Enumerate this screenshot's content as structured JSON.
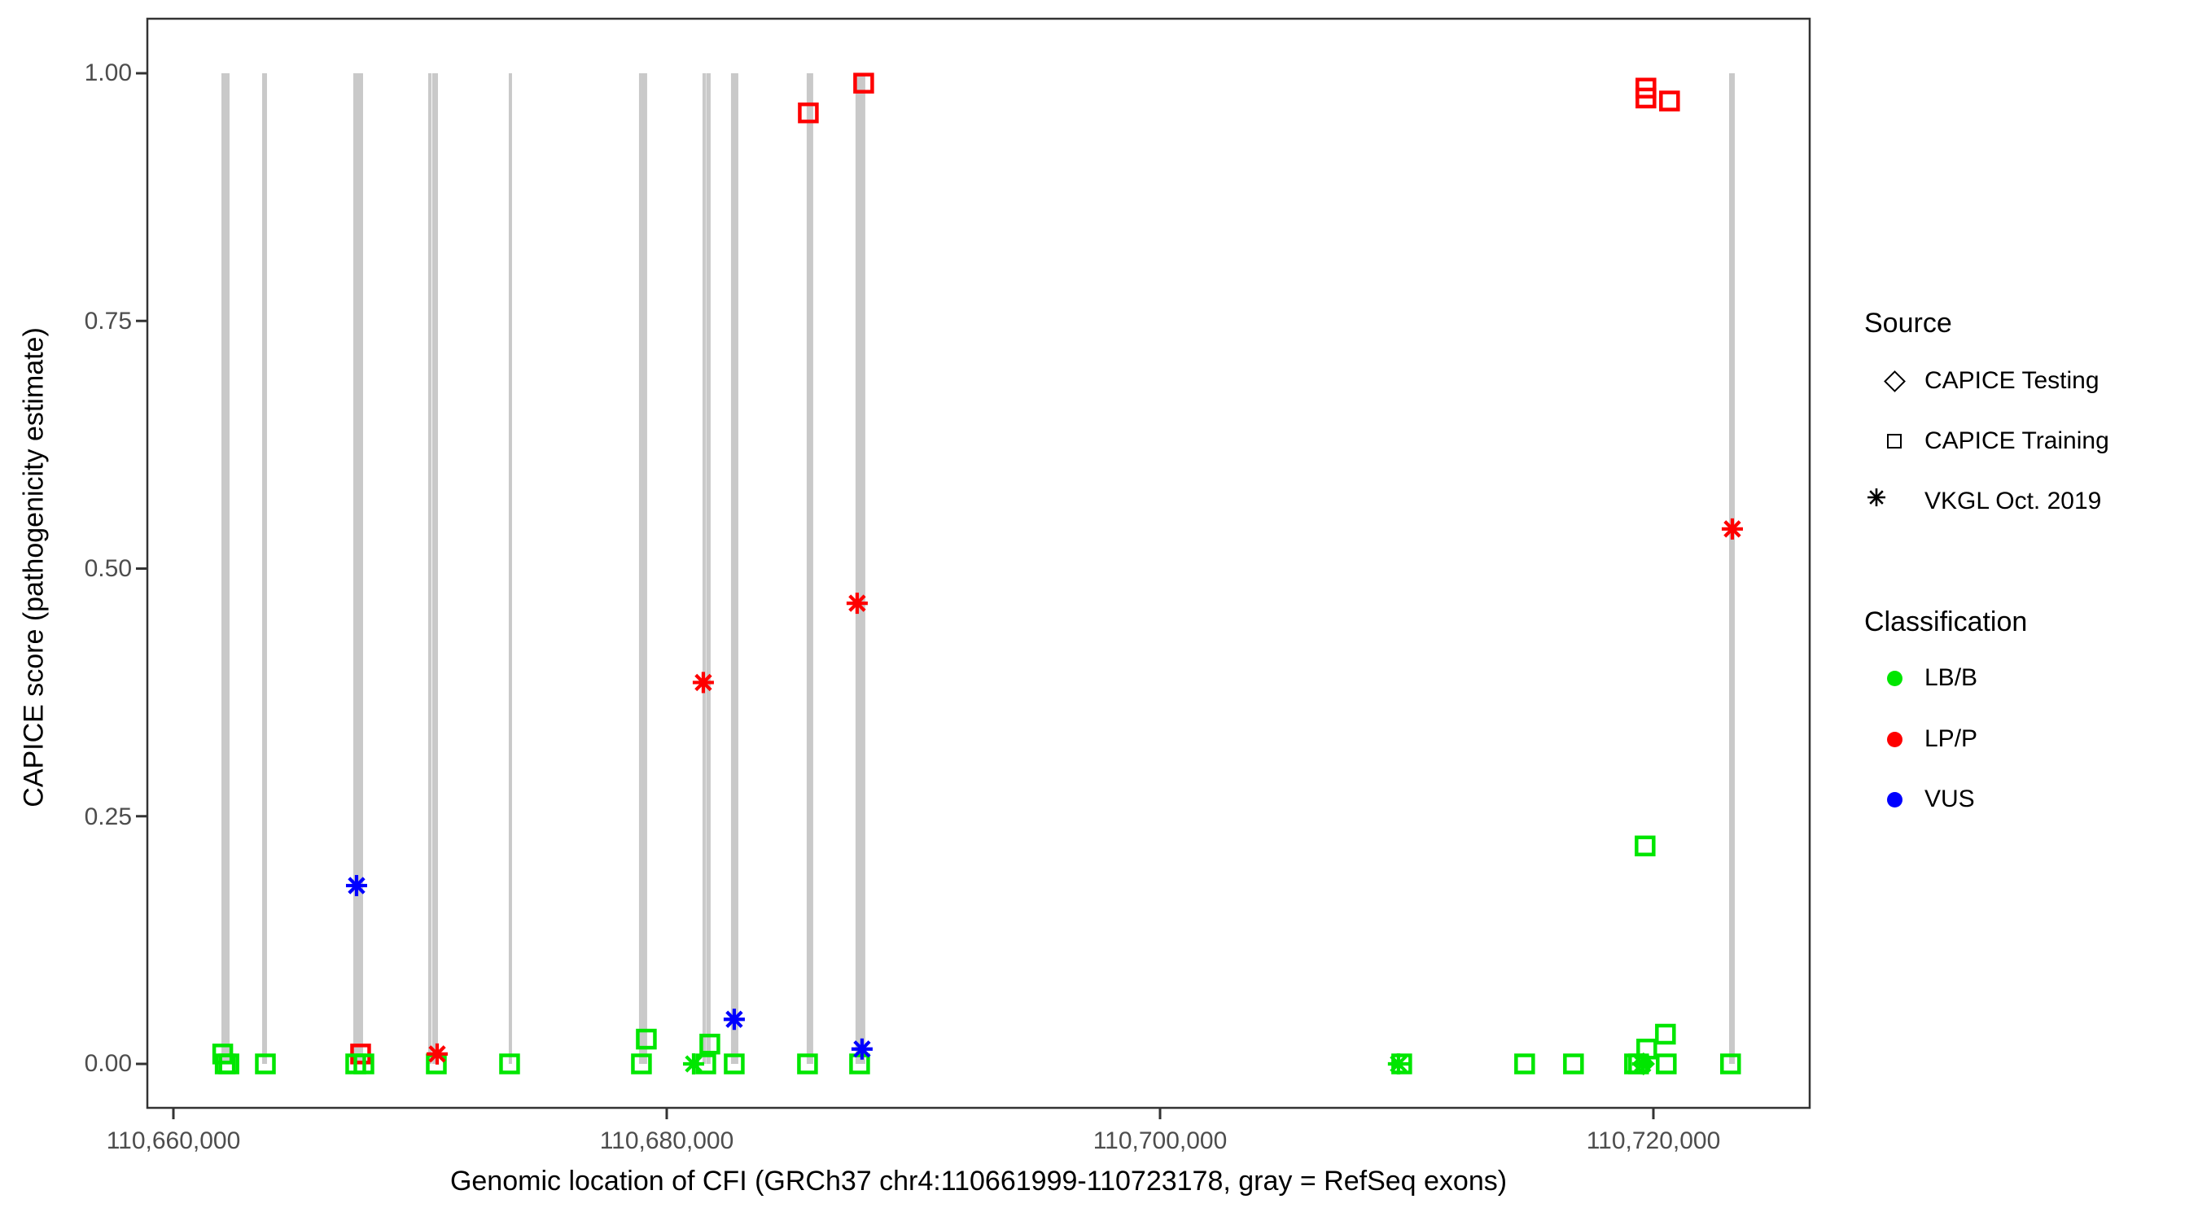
{
  "chart_data": {
    "type": "scatter",
    "title": "",
    "xlabel": "Genomic location of CFI (GRCh37 chr4:110661999-110723178, gray = RefSeq exons)",
    "ylabel": "CAPICE score (pathogenicity estimate)",
    "x_axis": {
      "ticks": [
        {
          "label": "110,660,000",
          "bp": 110660000
        },
        {
          "label": "110,680,000",
          "bp": 110680000
        },
        {
          "label": "110,700,000",
          "bp": 110700000
        },
        {
          "label": "110,720,000",
          "bp": 110720000
        }
      ],
      "gene_start": 110661999,
      "gene_end": 110723178
    },
    "y_axis": {
      "ticks": [
        {
          "label": "1.00",
          "value": 1.0
        },
        {
          "label": "0.75",
          "value": 0.75
        },
        {
          "label": "0.50",
          "value": 0.5
        },
        {
          "label": "0.25",
          "value": 0.25
        },
        {
          "label": "0.00",
          "value": 0.0
        }
      ],
      "range": [
        0,
        1
      ]
    },
    "legend": {
      "source": {
        "title": "Source",
        "items": [
          {
            "label": "CAPICE Testing",
            "shape": "diamond"
          },
          {
            "label": "CAPICE Training",
            "shape": "square"
          },
          {
            "label": "VKGL Oct. 2019",
            "shape": "asterisk"
          }
        ]
      },
      "classification": {
        "title": "Classification",
        "items": [
          {
            "label": "LB/B",
            "color": "#00e600"
          },
          {
            "label": "LP/P",
            "color": "#fe0000"
          },
          {
            "label": "VUS",
            "color": "#0000fe"
          }
        ]
      }
    },
    "colors": {
      "LB/B": "#00e600",
      "LP/P": "#fe0000",
      "VUS": "#0000fe",
      "exon": "#c9c9c9",
      "panel_border": "#333333",
      "tick_text": "#4d4d4d"
    },
    "exons_bp": [
      [
        110661947,
        110662277
      ],
      [
        110663597,
        110663795
      ],
      [
        110667293,
        110667689
      ],
      [
        110670329,
        110670455
      ],
      [
        110670490,
        110670725
      ],
      [
        110673596,
        110673728
      ],
      [
        110678876,
        110678968
      ],
      [
        110679000,
        110679206
      ],
      [
        110681450,
        110681570
      ],
      [
        110681600,
        110681780
      ],
      [
        110682605,
        110682902
      ],
      [
        110685674,
        110685938
      ],
      [
        110687654,
        110688050
      ],
      [
        110723069,
        110723300
      ]
    ],
    "points": [
      {
        "bp": 110667590,
        "score": 0.01,
        "source": "CAPICE Training",
        "classification": "LP/P"
      },
      {
        "bp": 110685740,
        "score": 0.96,
        "source": "CAPICE Training",
        "classification": "LP/P"
      },
      {
        "bp": 110687984,
        "score": 0.99,
        "source": "CAPICE Training",
        "classification": "LP/P"
      },
      {
        "bp": 110719697,
        "score": 0.985,
        "source": "CAPICE Training",
        "classification": "LP/P"
      },
      {
        "bp": 110719697,
        "score": 0.975,
        "source": "CAPICE Training",
        "classification": "LP/P"
      },
      {
        "bp": 110720654,
        "score": 0.972,
        "source": "CAPICE Training",
        "classification": "LP/P"
      },
      {
        "bp": 110662000,
        "score": 0.01,
        "source": "CAPICE Training",
        "classification": "LB/B"
      },
      {
        "bp": 110662100,
        "score": 0.0,
        "source": "CAPICE Training",
        "classification": "LB/B"
      },
      {
        "bp": 110662250,
        "score": 0.0,
        "source": "CAPICE Training",
        "classification": "LB/B"
      },
      {
        "bp": 110663729,
        "score": 0.0,
        "source": "CAPICE Training",
        "classification": "LB/B"
      },
      {
        "bp": 110667392,
        "score": 0.0,
        "source": "CAPICE Training",
        "classification": "LB/B"
      },
      {
        "bp": 110667722,
        "score": 0.0,
        "source": "CAPICE Training",
        "classification": "LB/B"
      },
      {
        "bp": 110670659,
        "score": 0.0,
        "source": "CAPICE Training",
        "classification": "LB/B"
      },
      {
        "bp": 110673629,
        "score": 0.0,
        "source": "CAPICE Training",
        "classification": "LB/B"
      },
      {
        "bp": 110678975,
        "score": 0.0,
        "source": "CAPICE Training",
        "classification": "LB/B"
      },
      {
        "bp": 110679173,
        "score": 0.025,
        "source": "CAPICE Training",
        "classification": "LB/B"
      },
      {
        "bp": 110681582,
        "score": 0.0,
        "source": "CAPICE Training",
        "classification": "LB/B"
      },
      {
        "bp": 110681747,
        "score": 0.02,
        "source": "CAPICE Training",
        "classification": "LB/B"
      },
      {
        "bp": 110682737,
        "score": 0.0,
        "source": "CAPICE Training",
        "classification": "LB/B"
      },
      {
        "bp": 110685707,
        "score": 0.0,
        "source": "CAPICE Training",
        "classification": "LB/B"
      },
      {
        "bp": 110687819,
        "score": 0.0,
        "source": "CAPICE Training",
        "classification": "LB/B"
      },
      {
        "bp": 110709797,
        "score": 0.0,
        "source": "CAPICE Training",
        "classification": "LB/B"
      },
      {
        "bp": 110714780,
        "score": 0.0,
        "source": "CAPICE Training",
        "classification": "LB/B"
      },
      {
        "bp": 110716760,
        "score": 0.0,
        "source": "CAPICE Training",
        "classification": "LB/B"
      },
      {
        "bp": 110719235,
        "score": 0.0,
        "source": "CAPICE Training",
        "classification": "LB/B"
      },
      {
        "bp": 110719400,
        "score": 0.0,
        "source": "CAPICE Training",
        "classification": "LB/B"
      },
      {
        "bp": 110719730,
        "score": 0.015,
        "source": "CAPICE Training",
        "classification": "LB/B"
      },
      {
        "bp": 110720489,
        "score": 0.03,
        "source": "CAPICE Training",
        "classification": "LB/B"
      },
      {
        "bp": 110720522,
        "score": 0.0,
        "source": "CAPICE Training",
        "classification": "LB/B"
      },
      {
        "bp": 110723128,
        "score": 0.0,
        "source": "CAPICE Training",
        "classification": "LB/B"
      },
      {
        "bp": 110719664,
        "score": 0.22,
        "source": "CAPICE Training",
        "classification": "LB/B"
      },
      {
        "bp": 110719598,
        "score": 0.0,
        "source": "CAPICE Testing",
        "classification": "LB/B"
      },
      {
        "bp": 110681089,
        "score": 0.0,
        "source": "VKGL Oct. 2019",
        "classification": "LB/B"
      },
      {
        "bp": 110709665,
        "score": 0.0,
        "source": "VKGL Oct. 2019",
        "classification": "LB/B"
      },
      {
        "bp": 110719565,
        "score": 0.0,
        "source": "VKGL Oct. 2019",
        "classification": "LB/B"
      },
      {
        "bp": 110667425,
        "score": 0.18,
        "source": "VKGL Oct. 2019",
        "classification": "VUS"
      },
      {
        "bp": 110682737,
        "score": 0.045,
        "source": "VKGL Oct. 2019",
        "classification": "VUS"
      },
      {
        "bp": 110687918,
        "score": 0.015,
        "source": "VKGL Oct. 2019",
        "classification": "VUS"
      },
      {
        "bp": 110670693,
        "score": 0.01,
        "source": "VKGL Oct. 2019",
        "classification": "LP/P"
      },
      {
        "bp": 110681483,
        "score": 0.385,
        "source": "VKGL Oct. 2019",
        "classification": "LP/P"
      },
      {
        "bp": 110687720,
        "score": 0.465,
        "source": "VKGL Oct. 2019",
        "classification": "LP/P"
      },
      {
        "bp": 110723200,
        "score": 0.54,
        "source": "VKGL Oct. 2019",
        "classification": "LP/P"
      }
    ]
  }
}
